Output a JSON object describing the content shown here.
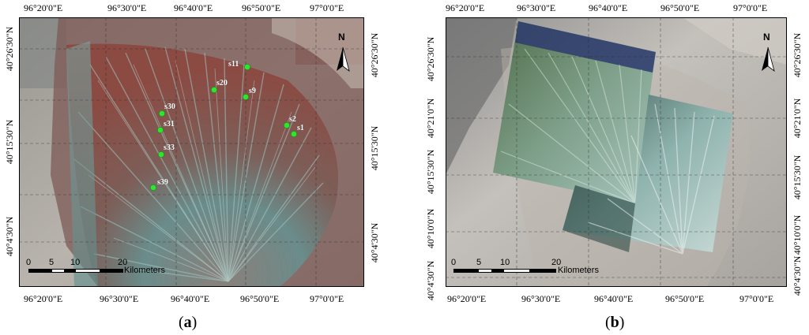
{
  "panel_a": {
    "caption_open": "(",
    "caption_letter": "a",
    "caption_close": ")",
    "top_ticks": [
      "96°20'0\"E",
      "96°30'0\"E",
      "96°40'0\"E",
      "96°50'0\"E",
      "97°0'0\"E"
    ],
    "bottom_ticks": [
      "96°20'0\"E",
      "96°30'0\"E",
      "96°40'0\"E",
      "96°50'0\"E",
      "97°0'0\"E"
    ],
    "left_ticks": [
      "40°26'30\"N",
      "40°15'30\"N",
      "40°4'30\"N"
    ],
    "right_ticks": [
      "40°26'30\"N",
      "40°15'30\"N",
      "40°4'30\"N"
    ],
    "north_label": "N",
    "scale_labels": [
      "0",
      "5",
      "10",
      "20"
    ],
    "scale_unit": "Kilometers",
    "sites": [
      "s11",
      "s20",
      "s9",
      "s30",
      "s31",
      "s2",
      "s1",
      "s33",
      "s39"
    ],
    "site_color": "#2ee62e"
  },
  "panel_b": {
    "caption_open": "(",
    "caption_letter": "b",
    "caption_close": ")",
    "top_ticks": [
      "96°20'0\"E",
      "96°30'0\"E",
      "96°40'0\"E",
      "96°50'0\"E",
      "97°0'0\"E"
    ],
    "bottom_ticks": [
      "96°20'0\"E",
      "96°30'0\"E",
      "96°40'0\"E",
      "96°50'0\"E",
      "97°0'0\"E"
    ],
    "left_ticks": [
      "40°26'30\"N",
      "40°21'0\"N",
      "40°15'30\"N",
      "40°10'0\"N",
      "40°4'30\"N"
    ],
    "right_ticks": [
      "40°26'30\"N",
      "40°21'0\"N",
      "40°15'30\"N",
      "40°10'0\"N",
      "40°4'30\"N"
    ],
    "north_label": "N",
    "scale_labels": [
      "0",
      "5",
      "10",
      "20"
    ],
    "scale_unit": "Kilometers"
  }
}
